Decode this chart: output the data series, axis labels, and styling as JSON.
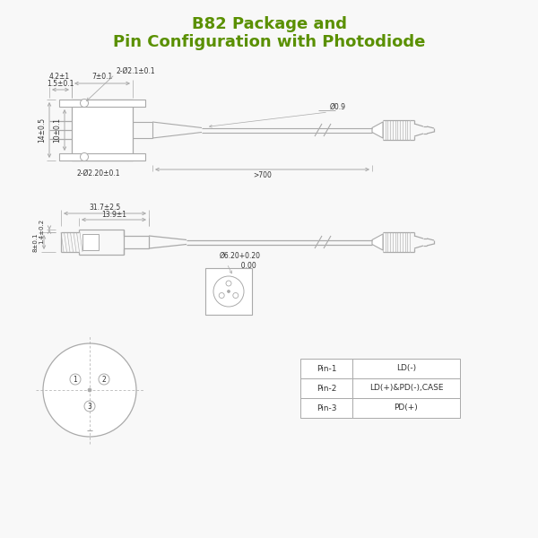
{
  "title_line1": "B82 Package and",
  "title_line2": "Pin Configuration with Photodiode",
  "title_color": "#5a9000",
  "bg_color": "#f8f8f8",
  "line_color": "#aaaaaa",
  "dark_line": "#444444",
  "text_color": "#333333",
  "pin_table": {
    "rows": [
      [
        "Pin-1",
        "LD(-)"
      ],
      [
        "Pin-2",
        "LD(+)&PD(-),CASE"
      ],
      [
        "Pin-3",
        "PD(+)"
      ]
    ]
  },
  "dims_top": {
    "width_left": "1.5±0.1",
    "width_body": "7±0.1",
    "height_total": "14±0.5",
    "height_body": "10±0.1",
    "screw_label": "2-Ø2.1±0.1",
    "mount_label": "2-Ø2.20±0.1",
    "flange_label": "4.2±1",
    "cable_label": ">700",
    "fiber_label": "Ø0.9"
  },
  "dims_bottom": {
    "body_length": "31.7±2.5",
    "ferrule_length": "13.9±1",
    "height_label": "8±0.1",
    "side_label": "1.4±0.2",
    "pin_circle": "Ø6.20+0.20\n          0.00"
  }
}
